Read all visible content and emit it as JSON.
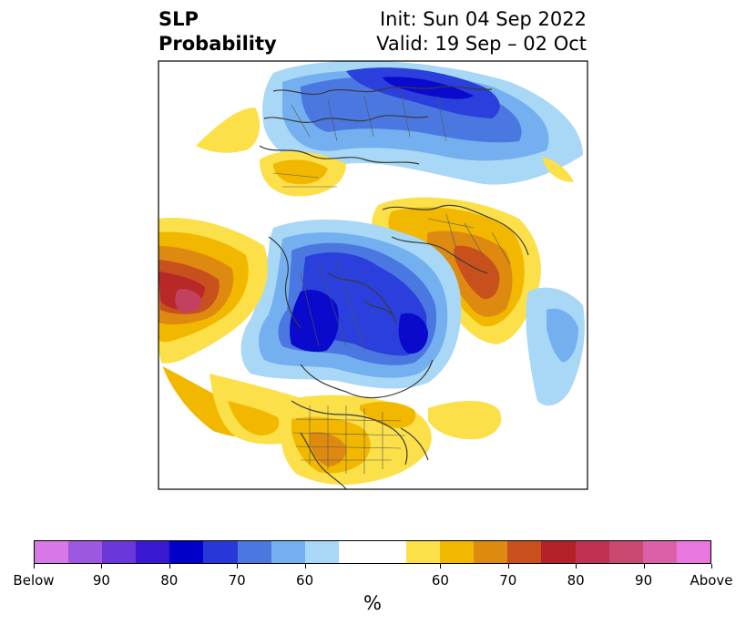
{
  "header": {
    "title_line1": "SLP",
    "title_line2": "Probability",
    "init_text": "Init: Sun 04 Sep 2022",
    "valid_text": "Valid: 19 Sep – 02 Oct"
  },
  "map": {
    "projection": "north polar stereographic",
    "land_colors": {
      "below_60": "#a8d8f5",
      "below_70": "#74b0f0",
      "below_80": "#4a78e0",
      "below_85": "#2a3fdc",
      "below_90": "#0a0acc",
      "above_60": "#fce04a",
      "above_70": "#f2b800",
      "above_80": "#de8a10",
      "above_85": "#c8501c",
      "above_90": "#b82828",
      "above_95": "#c44060"
    }
  },
  "colorbar": {
    "colors": [
      "#d878e8",
      "#9c58e0",
      "#6a38d8",
      "#3818d0",
      "#0000c8",
      "#2838d8",
      "#4a78e0",
      "#74b0f0",
      "#a8d8f5",
      "#ffffff",
      "#ffffff",
      "#fce04a",
      "#f2b800",
      "#de8a10",
      "#c8501c",
      "#b22228",
      "#c03050",
      "#c84870",
      "#dc60a8",
      "#e878e0"
    ],
    "widths": [
      1,
      1,
      1,
      1,
      1,
      1,
      1,
      1,
      1,
      1,
      1,
      1,
      1,
      1,
      1,
      1,
      1,
      1,
      1,
      1
    ],
    "tick_labels": [
      "Below",
      "90",
      "80",
      "70",
      "60",
      "60",
      "70",
      "80",
      "90",
      "Above"
    ],
    "unit": "%"
  }
}
